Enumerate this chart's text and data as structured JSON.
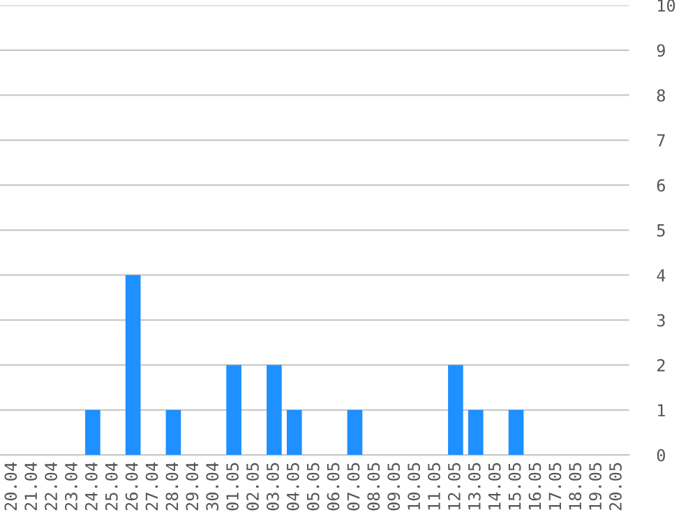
{
  "chart_data": {
    "type": "bar",
    "categories": [
      "20.04",
      "21.04",
      "22.04",
      "23.04",
      "24.04",
      "25.04",
      "26.04",
      "27.04",
      "28.04",
      "29.04",
      "30.04",
      "01.05",
      "02.05",
      "03.05",
      "04.05",
      "05.05",
      "06.05",
      "07.05",
      "08.05",
      "09.05",
      "10.05",
      "11.05",
      "12.05",
      "13.05",
      "14.05",
      "15.05",
      "16.05",
      "17.05",
      "18.05",
      "19.05",
      "20.05"
    ],
    "values": [
      0,
      0,
      0,
      0,
      1,
      0,
      4,
      0,
      1,
      0,
      0,
      2,
      0,
      2,
      1,
      0,
      0,
      1,
      0,
      0,
      0,
      0,
      2,
      1,
      0,
      1,
      0,
      0,
      0,
      0,
      0
    ],
    "color": "#1e90ff",
    "ylim": [
      0,
      10
    ],
    "yticks": [
      0,
      1,
      2,
      3,
      4,
      5,
      6,
      7,
      8,
      9,
      10
    ],
    "grid": "y"
  }
}
